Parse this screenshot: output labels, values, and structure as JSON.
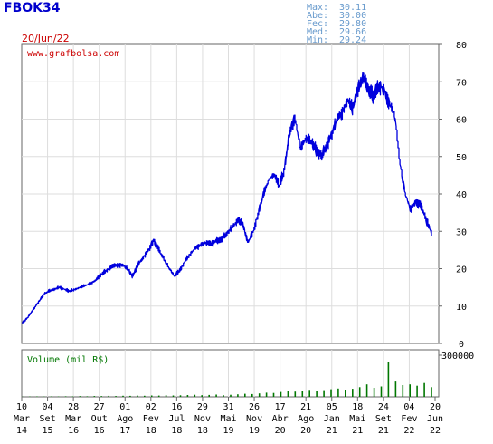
{
  "header": {
    "ticker": "FBOK34",
    "date": "20/Jun/22",
    "stats": [
      {
        "label": "Max:",
        "value": "30.11"
      },
      {
        "label": "Abe:",
        "value": "30.00"
      },
      {
        "label": "Fec:",
        "value": "29.80"
      },
      {
        "label": "Med:",
        "value": "29.66"
      },
      {
        "label": "Min:",
        "value": "29.24"
      }
    ]
  },
  "colors": {
    "price": "#0000dd",
    "volume": "#007700",
    "header_text": "#0000cc",
    "date_text": "#cc0000",
    "stats_text": "#6699cc",
    "watermark": "#cc0000"
  },
  "chart_data": [
    {
      "type": "line",
      "title": "",
      "watermark": "www.grafbolsa.com",
      "ylim": [
        0,
        80
      ],
      "y_ticks": [
        "0",
        "10",
        "20",
        "30",
        "40",
        "50",
        "60",
        "70",
        "80"
      ],
      "x_ticks": [
        {
          "day": "10",
          "month": "Mar",
          "year": "14"
        },
        {
          "day": "04",
          "month": "Set",
          "year": "15"
        },
        {
          "day": "28",
          "month": "Mar",
          "year": "16"
        },
        {
          "day": "27",
          "month": "Out",
          "year": "16"
        },
        {
          "day": "01",
          "month": "Ago",
          "year": "17"
        },
        {
          "day": "02",
          "month": "Fev",
          "year": "18"
        },
        {
          "day": "16",
          "month": "Jul",
          "year": "18"
        },
        {
          "day": "29",
          "month": "Nov",
          "year": "18"
        },
        {
          "day": "31",
          "month": "Mai",
          "year": "19"
        },
        {
          "day": "26",
          "month": "Nov",
          "year": "19"
        },
        {
          "day": "17",
          "month": "Abr",
          "year": "20"
        },
        {
          "day": "21",
          "month": "Ago",
          "year": "20"
        },
        {
          "day": "05",
          "month": "Jan",
          "year": "21"
        },
        {
          "day": "18",
          "month": "Mai",
          "year": "21"
        },
        {
          "day": "24",
          "month": "Set",
          "year": "21"
        },
        {
          "day": "04",
          "month": "Fev",
          "year": "22"
        },
        {
          "day": "20",
          "month": "Jun",
          "year": "22"
        }
      ],
      "series": [
        {
          "values": [
            5.5,
            7,
            9,
            11,
            13,
            14,
            14.5,
            15,
            14.5,
            14,
            14.5,
            15,
            15.5,
            16,
            17,
            18.5,
            19.5,
            20.5,
            21,
            21,
            20,
            18,
            21,
            23,
            25,
            27.5,
            25,
            22.5,
            20,
            18,
            19.5,
            22,
            24,
            25.5,
            26.5,
            27,
            26.5,
            27.5,
            28,
            29.5,
            31,
            33,
            32,
            27,
            30,
            35,
            40,
            44,
            45,
            42,
            47,
            57,
            60,
            52,
            55,
            54,
            52,
            50,
            53,
            56,
            60,
            62,
            65,
            63,
            68,
            71,
            68,
            66,
            69,
            68,
            64,
            61,
            48,
            40,
            36,
            38,
            37,
            33,
            29.8
          ]
        }
      ]
    },
    {
      "type": "area",
      "title": "Volume (mil R$)",
      "ylim": [
        0,
        300000
      ],
      "y_ticks": [
        "300000"
      ],
      "series": [
        {
          "values": [
            1500,
            2500,
            3000,
            2000,
            3500,
            2500,
            4000,
            3000,
            5000,
            4000,
            6000,
            5000,
            7000,
            6000,
            8000,
            7000,
            9000,
            8000,
            10000,
            9000,
            12000,
            10000,
            11000,
            13000,
            15000,
            12000,
            14000,
            16000,
            12000,
            15000,
            18000,
            22000,
            20000,
            25000,
            30000,
            28000,
            35000,
            40000,
            38000,
            45000,
            50000,
            42000,
            48000,
            55000,
            60000,
            52000,
            58000,
            70000,
            90000,
            65000,
            75000,
            250000,
            110000,
            85000,
            90000,
            80000,
            100000,
            70000
          ]
        }
      ]
    }
  ]
}
